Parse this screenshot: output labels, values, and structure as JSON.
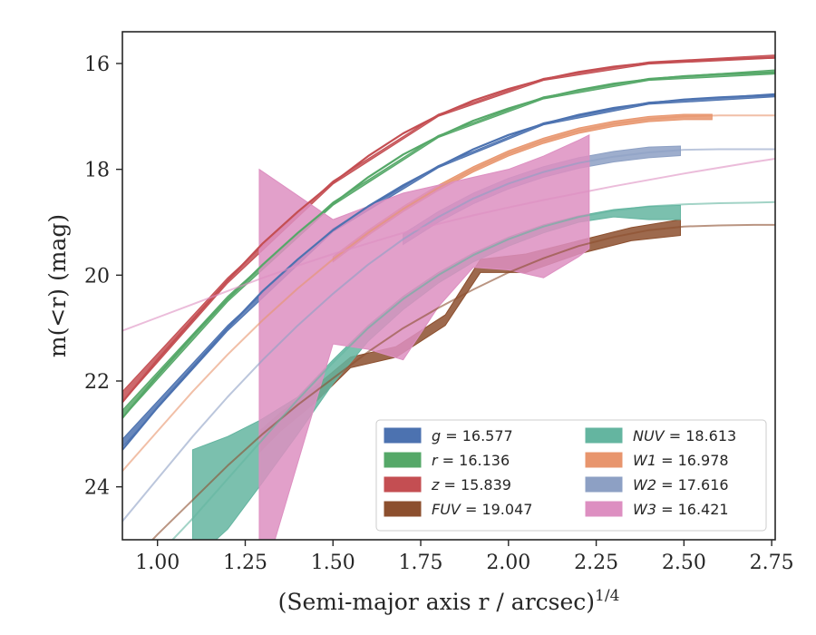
{
  "chart_data": {
    "type": "line",
    "title": "",
    "xlabel": "(Semi-major axis r / arcsec)",
    "xlabel_sup": "1/4",
    "ylabel": "m(<r) (mag)",
    "xlim": [
      0.9,
      2.76
    ],
    "ylim": [
      25.0,
      15.4
    ],
    "y_inverted": true,
    "xticks": [
      1.0,
      1.25,
      1.5,
      1.75,
      2.0,
      2.25,
      2.5,
      2.75
    ],
    "xtick_labels": [
      "1.00",
      "1.25",
      "1.50",
      "1.75",
      "2.00",
      "2.25",
      "2.50",
      "2.75"
    ],
    "yticks": [
      16,
      18,
      20,
      22,
      24
    ],
    "ytick_labels": [
      "16",
      "18",
      "20",
      "22",
      "24"
    ],
    "grid": false,
    "legend_position": "bottom-right",
    "legend_columns": 2,
    "series": [
      {
        "name": "g",
        "label": "g = 16.577",
        "band": "g",
        "total_mag": "16.577",
        "color": "#4c72b0",
        "model_x": [
          0.9,
          1.0,
          1.1,
          1.2,
          1.3,
          1.4,
          1.5,
          1.6,
          1.7,
          1.8,
          1.9,
          2.0,
          2.1,
          2.2,
          2.3,
          2.4,
          2.5,
          2.6,
          2.7,
          2.76
        ],
        "model_y": [
          23.3,
          22.5,
          21.75,
          21.0,
          20.3,
          19.7,
          19.15,
          18.7,
          18.3,
          17.95,
          17.62,
          17.35,
          17.14,
          16.97,
          16.84,
          16.75,
          16.68,
          16.64,
          16.61,
          16.6
        ],
        "band_x": [
          0.9,
          1.2,
          1.5,
          1.8,
          2.1,
          2.4,
          2.76
        ],
        "band_lo": [
          23.1,
          20.95,
          19.12,
          17.93,
          17.12,
          16.73,
          16.57
        ],
        "band_hi": [
          23.25,
          21.05,
          19.18,
          17.97,
          17.16,
          16.77,
          16.63
        ]
      },
      {
        "name": "r",
        "label": "r = 16.136",
        "band": "r",
        "total_mag": "16.136",
        "color": "#55a868",
        "model_x": [
          0.9,
          1.0,
          1.1,
          1.2,
          1.3,
          1.4,
          1.5,
          1.6,
          1.7,
          1.8,
          1.9,
          2.0,
          2.1,
          2.2,
          2.3,
          2.4,
          2.5,
          2.6,
          2.7,
          2.76
        ],
        "model_y": [
          22.7,
          21.9,
          21.15,
          20.45,
          19.8,
          19.2,
          18.65,
          18.15,
          17.72,
          17.38,
          17.08,
          16.85,
          16.65,
          16.5,
          16.38,
          16.3,
          16.24,
          16.2,
          16.18,
          16.17
        ],
        "band_x": [
          0.9,
          1.2,
          1.5,
          1.8,
          2.1,
          2.4,
          2.76
        ],
        "band_lo": [
          22.55,
          20.4,
          18.62,
          17.36,
          16.63,
          16.28,
          16.12
        ],
        "band_hi": [
          22.7,
          20.5,
          18.68,
          17.4,
          16.67,
          16.32,
          16.2
        ]
      },
      {
        "name": "z",
        "label": "z = 15.839",
        "band": "z",
        "total_mag": "15.839",
        "color": "#c44e52",
        "model_x": [
          0.9,
          1.0,
          1.1,
          1.2,
          1.3,
          1.4,
          1.5,
          1.6,
          1.7,
          1.8,
          1.9,
          2.0,
          2.1,
          2.2,
          2.3,
          2.4,
          2.5,
          2.6,
          2.7,
          2.76
        ],
        "model_y": [
          22.4,
          21.6,
          20.85,
          20.1,
          19.4,
          18.8,
          18.25,
          17.75,
          17.32,
          16.98,
          16.7,
          16.48,
          16.3,
          16.16,
          16.06,
          15.99,
          15.95,
          15.92,
          15.9,
          15.89
        ],
        "band_x": [
          0.9,
          1.2,
          1.5,
          1.8,
          2.1,
          2.4,
          2.76
        ],
        "band_lo": [
          22.2,
          20.05,
          18.22,
          16.96,
          16.28,
          15.97,
          15.84
        ],
        "band_hi": [
          22.4,
          20.15,
          18.28,
          17.0,
          16.32,
          16.01,
          15.9
        ]
      },
      {
        "name": "FUV",
        "label": "FUV = 19.047",
        "band": "FUV",
        "total_mag": "19.047",
        "color": "#8c4f2e",
        "model_x": [
          0.9,
          1.0,
          1.1,
          1.2,
          1.3,
          1.4,
          1.5,
          1.6,
          1.7,
          1.8,
          1.9,
          2.0,
          2.1,
          2.2,
          2.3,
          2.4,
          2.5,
          2.6,
          2.7,
          2.76
        ],
        "model_y": [
          25.6,
          24.9,
          24.25,
          23.6,
          23.0,
          22.45,
          21.95,
          21.45,
          21.0,
          20.62,
          20.27,
          19.95,
          19.68,
          19.45,
          19.28,
          19.15,
          19.08,
          19.06,
          19.05,
          19.05
        ],
        "band_x": [
          1.29,
          1.35,
          1.45,
          1.55,
          1.68,
          1.82,
          1.92,
          2.05,
          2.2,
          2.35,
          2.49
        ],
        "band_lo": [
          22.95,
          22.6,
          22.1,
          21.55,
          21.35,
          20.75,
          19.7,
          19.6,
          19.35,
          19.1,
          18.95
        ],
        "band_hi": [
          23.35,
          22.95,
          22.4,
          21.75,
          21.55,
          20.95,
          19.95,
          19.95,
          19.6,
          19.35,
          19.25
        ]
      },
      {
        "name": "NUV",
        "label": "NUV = 18.613",
        "band": "NUV",
        "total_mag": "18.613",
        "color": "#64b5a0",
        "model_x": [
          0.9,
          1.0,
          1.1,
          1.2,
          1.3,
          1.4,
          1.5,
          1.6,
          1.7,
          1.8,
          1.9,
          2.0,
          2.1,
          2.2,
          2.3,
          2.4,
          2.5,
          2.6,
          2.7,
          2.76
        ],
        "model_y": [
          26.0,
          25.3,
          24.6,
          23.85,
          23.1,
          22.35,
          21.65,
          21.0,
          20.45,
          20.0,
          19.62,
          19.32,
          19.08,
          18.9,
          18.78,
          18.7,
          18.66,
          18.64,
          18.63,
          18.62
        ],
        "band_x": [
          1.1,
          1.2,
          1.29,
          1.4,
          1.5,
          1.6,
          1.7,
          1.8,
          1.9,
          2.0,
          2.1,
          2.2,
          2.3,
          2.4,
          2.49
        ],
        "band_lo": [
          23.3,
          23.05,
          22.75,
          22.3,
          21.6,
          20.95,
          20.4,
          19.95,
          19.58,
          19.28,
          19.05,
          18.88,
          18.76,
          18.7,
          18.68
        ],
        "band_hi": [
          25.4,
          24.8,
          24.0,
          23.0,
          22.05,
          21.25,
          20.65,
          20.15,
          19.75,
          19.45,
          19.2,
          19.0,
          18.9,
          18.95,
          18.95
        ]
      },
      {
        "name": "W1",
        "label": "W1 = 16.978",
        "band": "W1",
        "total_mag": "16.978",
        "color": "#e8956d",
        "model_x": [
          0.9,
          1.0,
          1.1,
          1.2,
          1.3,
          1.4,
          1.5,
          1.6,
          1.7,
          1.8,
          1.9,
          2.0,
          2.1,
          2.2,
          2.3,
          2.4,
          2.5,
          2.6,
          2.7,
          2.76
        ],
        "model_y": [
          23.7,
          22.95,
          22.2,
          21.5,
          20.85,
          20.25,
          19.7,
          19.2,
          18.75,
          18.35,
          18.0,
          17.7,
          17.46,
          17.27,
          17.14,
          17.05,
          17.0,
          16.98,
          16.98,
          16.98
        ],
        "band_x": [
          1.5,
          1.6,
          1.7,
          1.8,
          1.9,
          2.0,
          2.1,
          2.2,
          2.3,
          2.4,
          2.5,
          2.58
        ],
        "band_lo": [
          19.65,
          19.15,
          18.7,
          18.3,
          17.95,
          17.65,
          17.41,
          17.22,
          17.09,
          17.0,
          16.96,
          16.96
        ],
        "band_hi": [
          19.75,
          19.25,
          18.8,
          18.4,
          18.05,
          17.75,
          17.51,
          17.32,
          17.19,
          17.1,
          17.06,
          17.06
        ]
      },
      {
        "name": "W2",
        "label": "W2 = 17.616",
        "band": "W2",
        "total_mag": "17.616",
        "color": "#8da0c4",
        "model_x": [
          0.9,
          1.0,
          1.1,
          1.2,
          1.3,
          1.4,
          1.5,
          1.6,
          1.7,
          1.8,
          1.9,
          2.0,
          2.1,
          2.2,
          2.3,
          2.4,
          2.5,
          2.6,
          2.7,
          2.76
        ],
        "model_y": [
          24.65,
          23.85,
          23.05,
          22.3,
          21.6,
          20.95,
          20.35,
          19.8,
          19.32,
          18.9,
          18.55,
          18.27,
          18.05,
          17.88,
          17.76,
          17.68,
          17.63,
          17.62,
          17.62,
          17.62
        ],
        "band_x": [
          1.7,
          1.8,
          1.9,
          2.0,
          2.1,
          2.2,
          2.3,
          2.4,
          2.49
        ],
        "band_lo": [
          19.22,
          18.8,
          18.45,
          18.17,
          17.95,
          17.78,
          17.66,
          17.58,
          17.56
        ],
        "band_hi": [
          19.42,
          19.0,
          18.65,
          18.37,
          18.15,
          17.98,
          17.86,
          17.78,
          17.74
        ]
      },
      {
        "name": "W3",
        "label": "W3 = 16.421",
        "band": "W3",
        "total_mag": "16.421",
        "color": "#dd8fc1",
        "model_x": [
          0.9,
          1.0,
          1.1,
          1.2,
          1.3,
          1.4,
          1.5,
          1.6,
          1.7,
          1.8,
          1.9,
          2.0,
          2.1,
          2.2,
          2.3,
          2.4,
          2.5,
          2.6,
          2.7,
          2.76
        ],
        "model_y": [
          21.05,
          20.8,
          20.55,
          20.3,
          20.05,
          19.82,
          19.6,
          19.4,
          19.2,
          19.03,
          18.87,
          18.72,
          18.58,
          18.45,
          18.32,
          18.2,
          18.08,
          17.97,
          17.86,
          17.8
        ],
        "band_x": [
          1.29,
          1.5,
          1.6,
          1.7,
          1.8,
          1.9,
          2.0,
          2.1,
          2.2,
          2.23
        ],
        "band_lo": [
          18.0,
          18.95,
          18.7,
          18.45,
          18.3,
          18.15,
          18.0,
          17.75,
          17.45,
          17.35
        ],
        "band_hi": [
          26.0,
          21.3,
          21.4,
          21.6,
          20.6,
          19.85,
          19.9,
          20.05,
          19.65,
          19.5
        ]
      }
    ]
  }
}
